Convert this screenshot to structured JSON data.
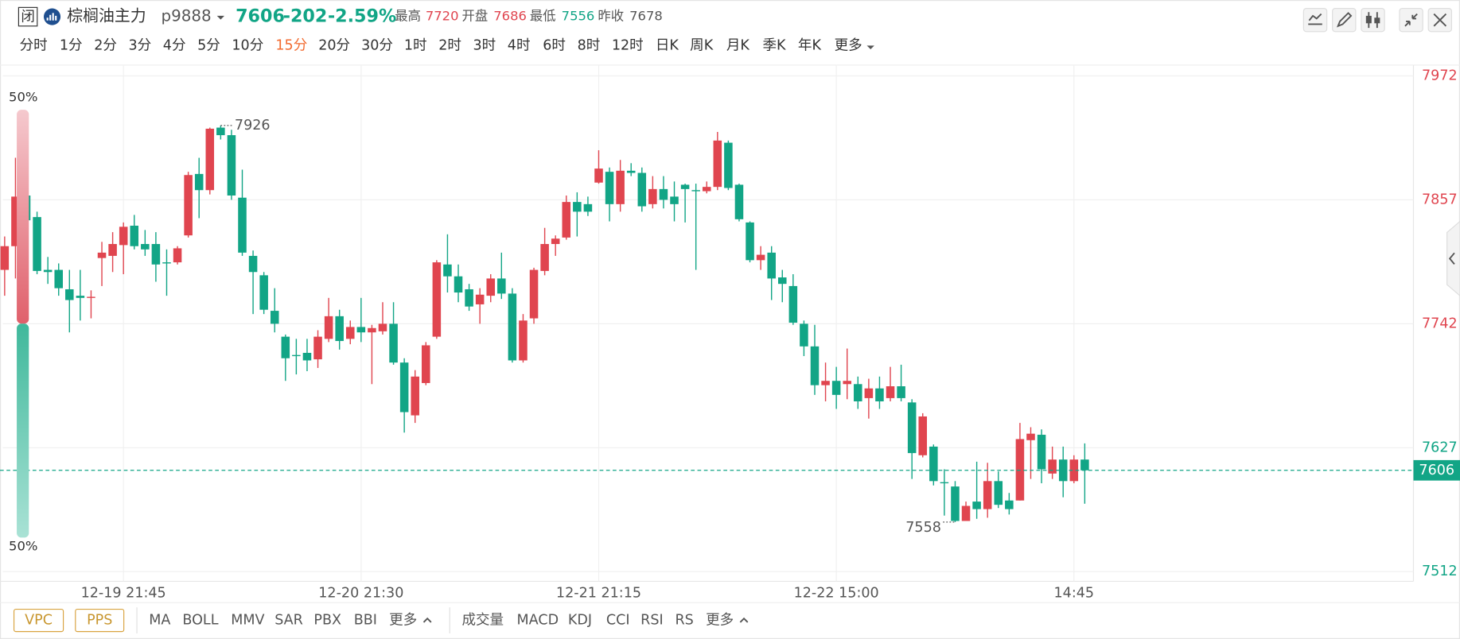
{
  "header": {
    "closed": "闭",
    "name": "棕榈油主力",
    "code": "p9888",
    "price": 7606,
    "change": -202,
    "change_pct": {
      "value": -2.59,
      "label": "-2.59%"
    },
    "stats": [
      {
        "label": "最高",
        "value": 7720
      },
      {
        "label": "开盘",
        "value": 7686
      },
      {
        "label": "最低",
        "value": 7556
      },
      {
        "label": "昨收",
        "value": 7678
      }
    ]
  },
  "periods": {
    "items": [
      "分时",
      "1分",
      "2分",
      "3分",
      "4分",
      "5分",
      "10分",
      "15分",
      "20分",
      "30分",
      "1时",
      "2时",
      "3时",
      "4时",
      "6时",
      "8时",
      "12时",
      "日K",
      "周K",
      "月K",
      "季K",
      "年K",
      "更多"
    ],
    "active": 7
  },
  "toolbar": {
    "main": [
      "VPC",
      "PPS"
    ],
    "overlays": [
      "MA",
      "BOLL",
      "MMV",
      "SAR",
      "PBX",
      "BBI",
      "更多"
    ],
    "subcharts": [
      "成交量",
      "MACD",
      "KDJ",
      "CCI",
      "RSI",
      "RS",
      "更多"
    ]
  },
  "chart_data": {
    "type": "candlestick",
    "categories": [
      null,
      null,
      null,
      null,
      null,
      null,
      null,
      null,
      null,
      null,
      null,
      "12-19 21:45",
      null,
      null,
      null,
      null,
      null,
      null,
      null,
      null,
      null,
      null,
      null,
      null,
      null,
      null,
      null,
      null,
      null,
      null,
      null,
      null,
      null,
      "12-20 21:30",
      null,
      null,
      null,
      null,
      null,
      null,
      null,
      null,
      null,
      null,
      null,
      null,
      null,
      null,
      null,
      null,
      null,
      null,
      null,
      null,
      null,
      "12-21 21:15",
      null,
      null,
      null,
      null,
      null,
      null,
      null,
      null,
      null,
      null,
      null,
      null,
      null,
      null,
      null,
      null,
      null,
      null,
      null,
      null,
      null,
      "12-22 15:00",
      null,
      null,
      null,
      null,
      null,
      null,
      null,
      null,
      null,
      null,
      null,
      null,
      null,
      null,
      null,
      null,
      null,
      null,
      null,
      null,
      null,
      "14:45",
      null
    ],
    "open": [
      7792,
      7814,
      7861,
      7841,
      7792,
      7792,
      7774,
      7768,
      7767,
      7803,
      7805,
      7815,
      7833,
      7816,
      7816,
      7799,
      7799,
      7824,
      7881,
      7866,
      7924,
      7917,
      7859,
      7805,
      7787,
      7754,
      7730,
      7713,
      7715,
      7709,
      7728,
      7749,
      7728,
      7739,
      7734,
      7735,
      7742,
      7706,
      7657,
      7687,
      7730,
      7797,
      7786,
      7774,
      7760,
      7768,
      7784,
      7770,
      7708,
      7747,
      7791,
      7816,
      7822,
      7855,
      7853,
      7873,
      7883,
      7853,
      7884,
      7882,
      7853,
      7867,
      7860,
      7871,
      7866,
      7865,
      7869,
      7910,
      7871,
      7836,
      7801,
      7808,
      7785,
      7777,
      7742,
      7721,
      7685,
      7689,
      7686,
      7686,
      7673,
      7682,
      7673,
      7684,
      7669,
      7620,
      7628,
      7595,
      7591,
      7559,
      7577,
      7570,
      7596,
      7578,
      7578,
      7634,
      7639,
      7603,
      7616,
      7596,
      7616
    ],
    "high": [
      7823,
      7896,
      7870,
      7846,
      7804,
      7798,
      7792,
      7792,
      7773,
      7818,
      7827,
      7836,
      7843,
      7829,
      7827,
      7811,
      7814,
      7883,
      7896,
      7924,
      7926,
      7922,
      7885,
      7810,
      7790,
      7775,
      7732,
      7728,
      7728,
      7736,
      7766,
      7755,
      7745,
      7766,
      7741,
      7762,
      7762,
      7710,
      7699,
      7725,
      7801,
      7825,
      7797,
      7779,
      7775,
      7788,
      7808,
      7775,
      7751,
      7794,
      7831,
      7824,
      7861,
      7864,
      7860,
      7903,
      7887,
      7894,
      7891,
      7887,
      7879,
      7879,
      7874,
      7872,
      7872,
      7874,
      7920,
      7912,
      7872,
      7837,
      7814,
      7814,
      7792,
      7788,
      7745,
      7741,
      7706,
      7702,
      7719,
      7693,
      7691,
      7693,
      7702,
      7704,
      7672,
      7659,
      7630,
      7607,
      7596,
      7577,
      7614,
      7613,
      7605,
      7585,
      7650,
      7646,
      7644,
      7628,
      7628,
      7620,
      7631
    ],
    "low": [
      7768,
      7784,
      7814,
      7788,
      7779,
      7768,
      7734,
      7745,
      7747,
      7777,
      7790,
      7788,
      7811,
      7805,
      7781,
      7768,
      7797,
      7822,
      7840,
      7862,
      7913,
      7857,
      7805,
      7751,
      7751,
      7734,
      7689,
      7695,
      7698,
      7701,
      7725,
      7718,
      7723,
      7725,
      7686,
      7732,
      7704,
      7641,
      7650,
      7685,
      7728,
      7771,
      7762,
      7754,
      7742,
      7762,
      7765,
      7706,
      7706,
      7742,
      7787,
      7805,
      7820,
      7823,
      7842,
      7872,
      7837,
      7846,
      7879,
      7846,
      7849,
      7849,
      7837,
      7836,
      7792,
      7863,
      7866,
      7866,
      7837,
      7799,
      7792,
      7764,
      7762,
      7741,
      7712,
      7676,
      7670,
      7663,
      7672,
      7663,
      7654,
      7663,
      7670,
      7670,
      7598,
      7618,
      7592,
      7564,
      7558,
      7561,
      7561,
      7562,
      7571,
      7565,
      7578,
      7598,
      7594,
      7598,
      7581,
      7594,
      7575
    ],
    "close": [
      7814,
      7860,
      7838,
      7791,
      7790,
      7775,
      7764,
      7766,
      7767,
      7808,
      7816,
      7832,
      7814,
      7811,
      7797,
      7798,
      7812,
      7880,
      7866,
      7923,
      7917,
      7861,
      7808,
      7790,
      7755,
      7742,
      7710,
      7712,
      7708,
      7730,
      7749,
      7726,
      7739,
      7734,
      7738,
      7742,
      7706,
      7660,
      7693,
      7722,
      7799,
      7786,
      7771,
      7758,
      7769,
      7784,
      7770,
      7708,
      7745,
      7792,
      7816,
      7821,
      7855,
      7846,
      7846,
      7886,
      7853,
      7884,
      7882,
      7851,
      7867,
      7857,
      7853,
      7867,
      7865,
      7869,
      7912,
      7868,
      7839,
      7801,
      7806,
      7784,
      7779,
      7743,
      7721,
      7685,
      7689,
      7676,
      7689,
      7670,
      7682,
      7670,
      7684,
      7673,
      7622,
      7656,
      7596,
      7594,
      7559,
      7573,
      7570,
      7596,
      7574,
      7570,
      7635,
      7640,
      7607,
      7616,
      7596,
      7616,
      7606
    ],
    "up_color": "#e0454f",
    "down_color": "#12a586",
    "ylim": [
      7503,
      7982
    ],
    "yticks": [
      7512,
      7627,
      7742,
      7857,
      7972
    ],
    "grid": true,
    "last": 7606,
    "max_marker": 7926,
    "min_marker": 7558,
    "ratio_bar": {
      "upper": {
        "value": 50,
        "label": "50%"
      },
      "lower": {
        "value": 50,
        "label": "50%"
      }
    }
  }
}
